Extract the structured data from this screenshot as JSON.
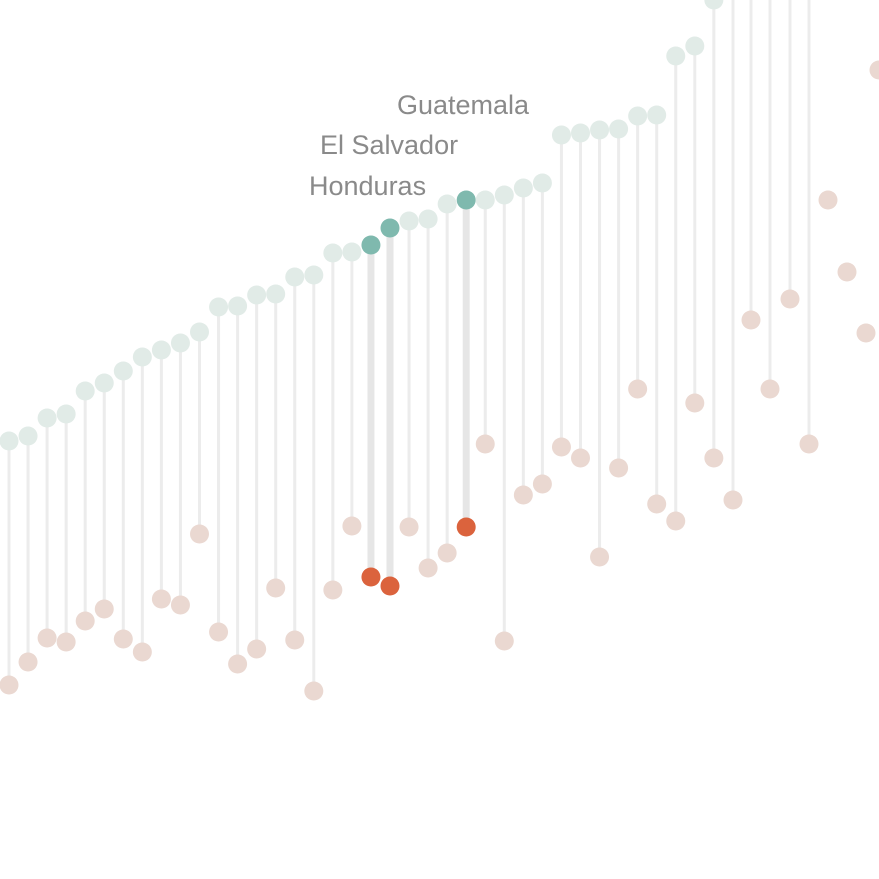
{
  "chart_data": {
    "type": "dumbbell",
    "title": "",
    "xlabel": "",
    "ylabel": "",
    "ylim": [
      0,
      879
    ],
    "y_inverted": true,
    "colors": {
      "top_point": "#e1ebe7",
      "bottom_point": "#ead8d1",
      "top_highlight": "#7fb9ae",
      "bottom_highlight": "#db633d",
      "stem": "#ececec",
      "label": "#8a8a8a"
    },
    "series": [
      {
        "name": "",
        "values": [
          441,
          436,
          418,
          414,
          391,
          383,
          371,
          357,
          350,
          343,
          332,
          307,
          306,
          295,
          294,
          277,
          275,
          253,
          252,
          245,
          228,
          221,
          219,
          204,
          200,
          200,
          195,
          188,
          183,
          135,
          133,
          130,
          129,
          116,
          115,
          56,
          46,
          0
        ]
      },
      {
        "name": "",
        "values": [
          685,
          662,
          638,
          642,
          621,
          609,
          639,
          652,
          599,
          605,
          534,
          632,
          664,
          649,
          588,
          640,
          691,
          590,
          526,
          577,
          586,
          527,
          568,
          553,
          527,
          444,
          641,
          495,
          484,
          447,
          458,
          557,
          468,
          389,
          504,
          521,
          403,
          458
        ]
      }
    ],
    "extra_bottom_points": [
      [
        733,
        500
      ],
      [
        751,
        320
      ],
      [
        770,
        389
      ],
      [
        790,
        299
      ],
      [
        809,
        444
      ],
      [
        828,
        200
      ],
      [
        847,
        272
      ],
      [
        866,
        333
      ],
      [
        879,
        70
      ]
    ],
    "extra_stems": [
      [
        733,
        0,
        500
      ],
      [
        751,
        0,
        320
      ],
      [
        770,
        0,
        389
      ],
      [
        790,
        0,
        299
      ],
      [
        809,
        0,
        444
      ]
    ],
    "highlights": [
      {
        "index": 19,
        "label": "Honduras"
      },
      {
        "index": 20,
        "label": "El Salvador"
      },
      {
        "index": 24,
        "label": "Guatemala"
      }
    ]
  }
}
